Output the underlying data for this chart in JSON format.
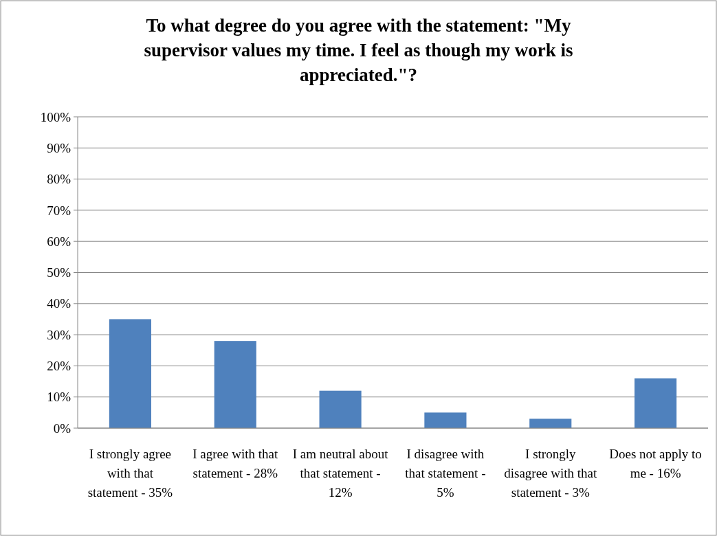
{
  "chart_data": {
    "type": "bar",
    "title": "To what degree do you agree with the statement: \"My supervisor values my time. I feel as though my work is appreciated.\"?",
    "categories": [
      "I strongly agree with that statement - 35%",
      "I agree with that statement - 28%",
      "I am neutral about that statement - 12%",
      "I disagree with that statement - 5%",
      "I strongly disagree with that statement - 3%",
      "Does not apply to me - 16%"
    ],
    "values": [
      35,
      28,
      12,
      5,
      3,
      16
    ],
    "color": "#4f81bd",
    "ylim": [
      0,
      100
    ],
    "yticks": [
      {
        "value": 0,
        "label": "0%"
      },
      {
        "value": 10,
        "label": "10%"
      },
      {
        "value": 20,
        "label": "20%"
      },
      {
        "value": 30,
        "label": "30%"
      },
      {
        "value": 40,
        "label": "40%"
      },
      {
        "value": 50,
        "label": "50%"
      },
      {
        "value": 60,
        "label": "60%"
      },
      {
        "value": 70,
        "label": "70%"
      },
      {
        "value": 80,
        "label": "80%"
      },
      {
        "value": 90,
        "label": "90%"
      },
      {
        "value": 100,
        "label": "100%"
      }
    ],
    "grid": "y"
  }
}
